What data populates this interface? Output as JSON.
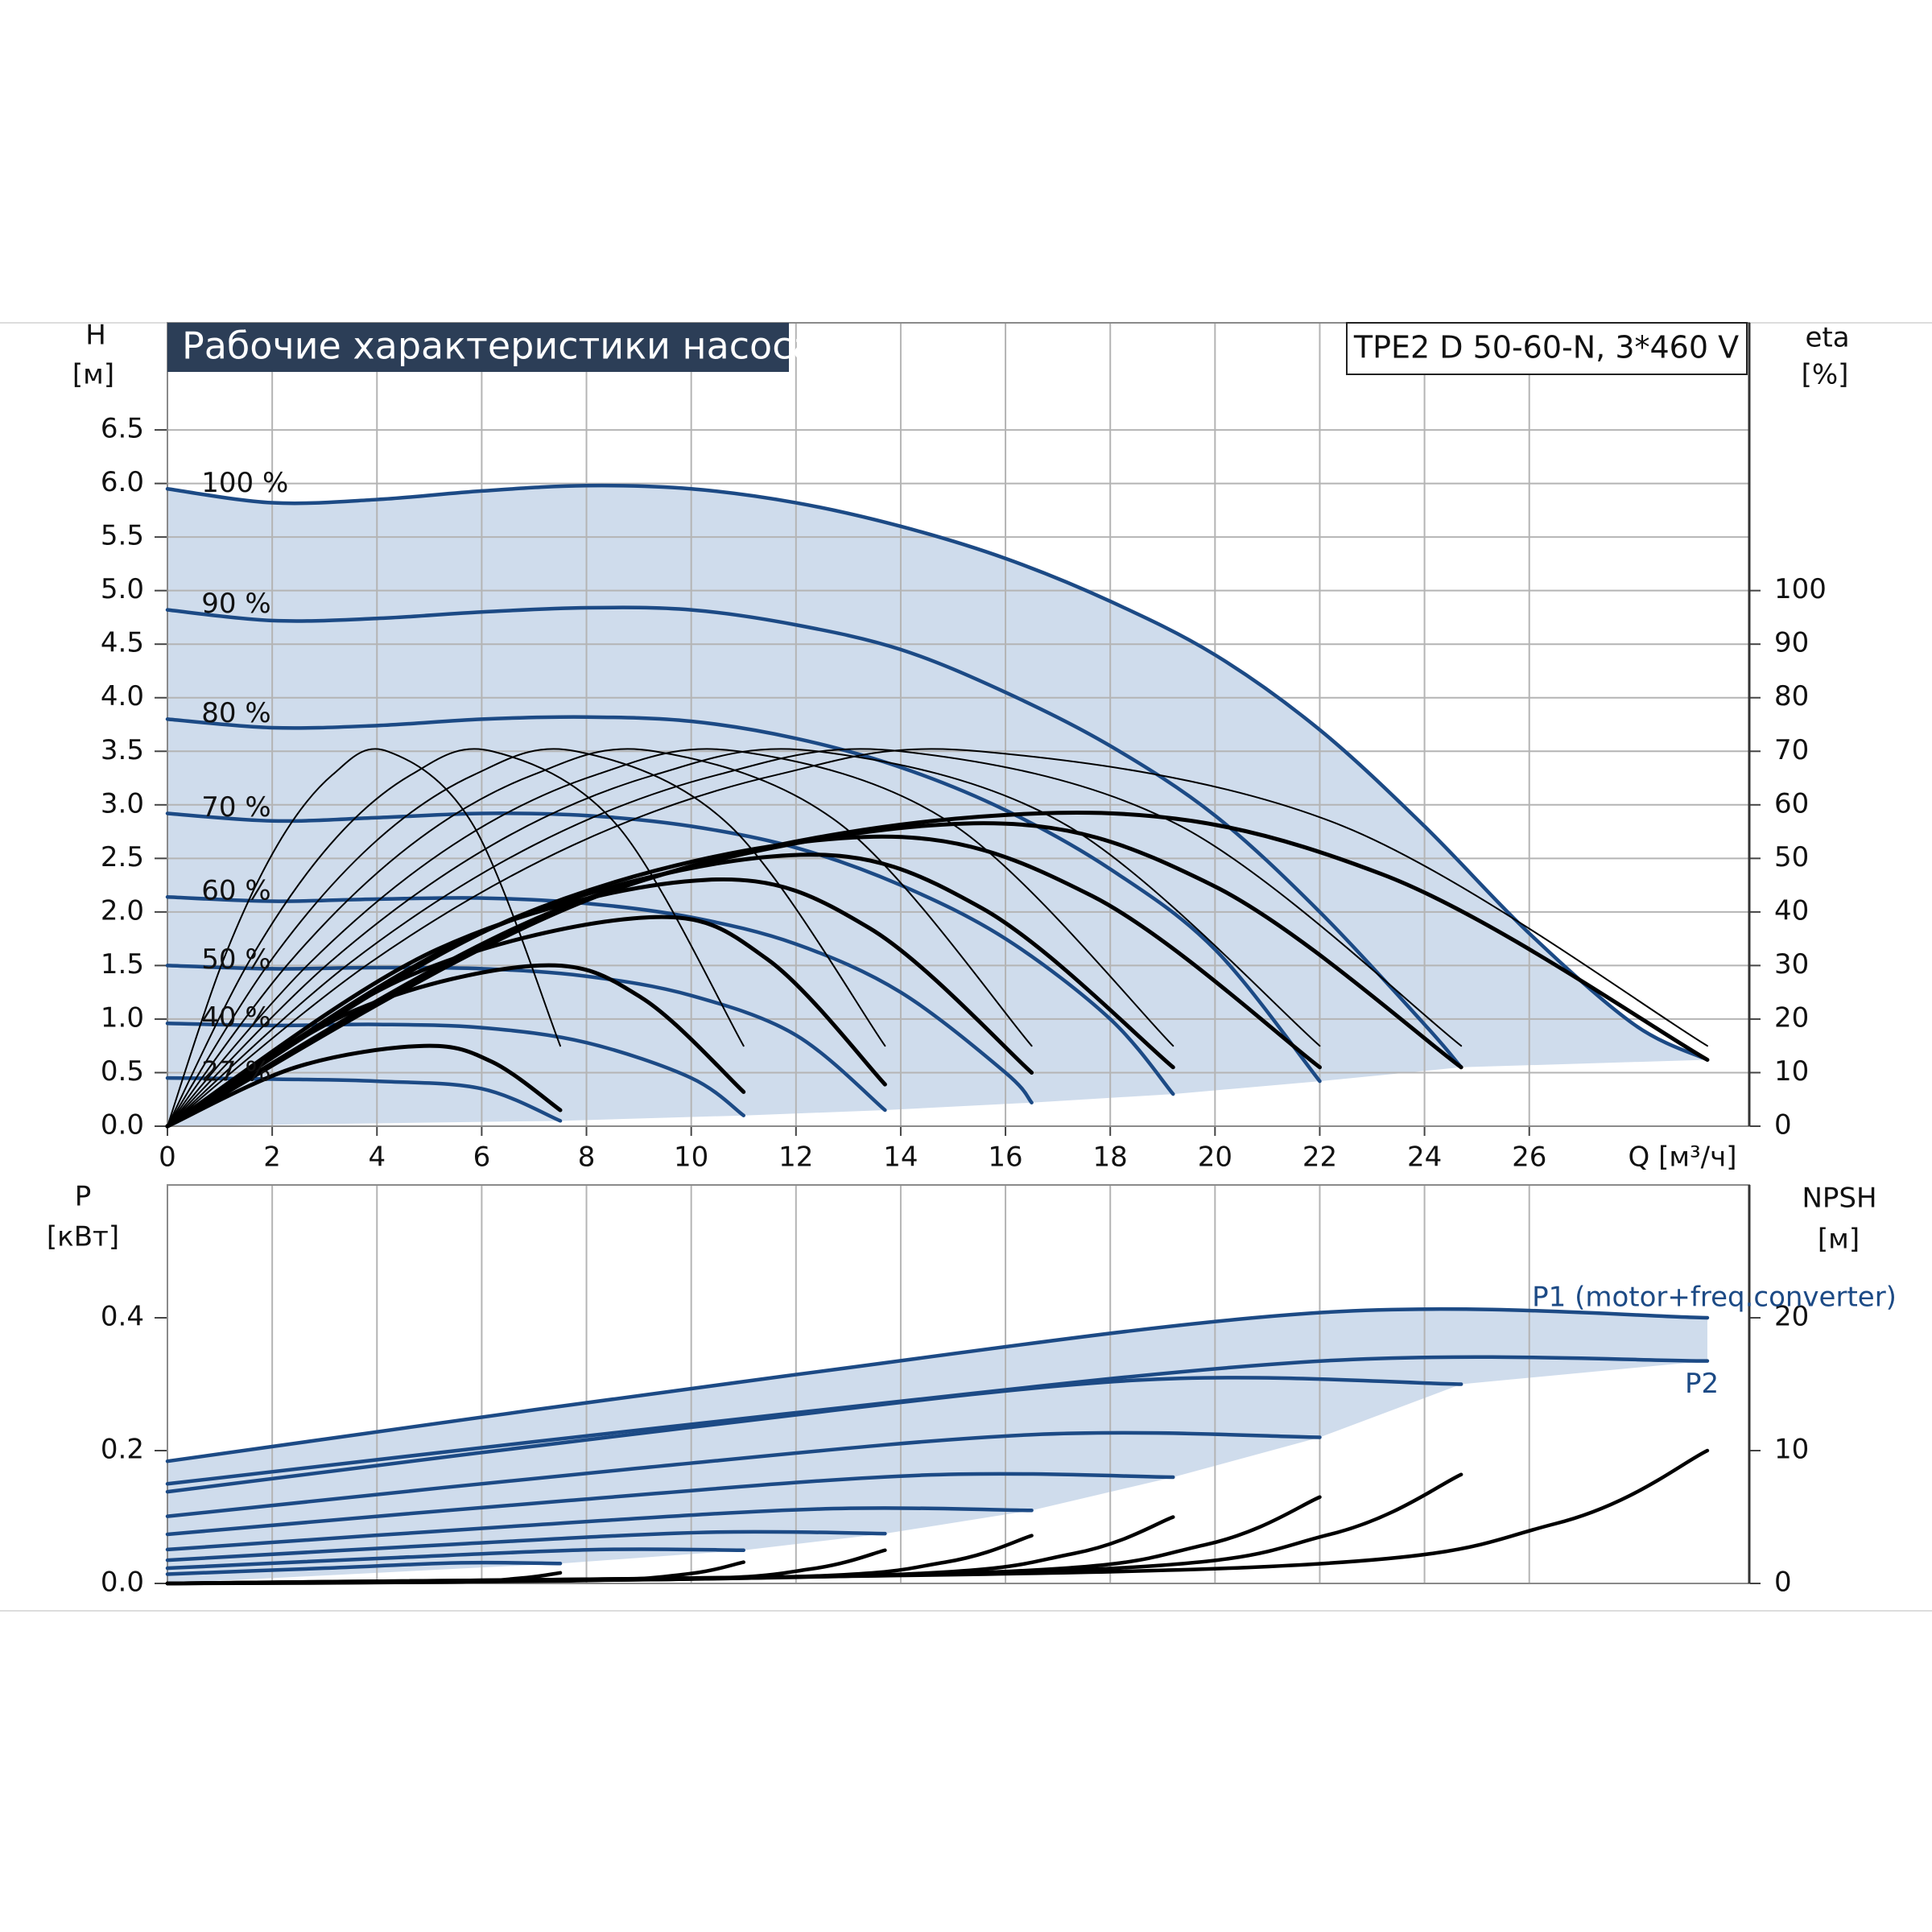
{
  "chart_data": [
    {
      "type": "line",
      "title": "Рабочие характеристики насоса",
      "subtitle": "TPE2 D 50-60-N, 3*460 V",
      "y_label": "H",
      "y_unit": "[м]",
      "y2_label": "eta",
      "y2_unit": "[%]",
      "x_label": "Q [м³/ч]",
      "xlim": [
        0,
        30.2
      ],
      "xticks": [
        0,
        2,
        4,
        6,
        8,
        10,
        12,
        14,
        16,
        18,
        20,
        22,
        24,
        26
      ],
      "ylim": [
        0,
        7.5
      ],
      "yticks": [
        {
          "value": 0,
          "label": "0.0"
        },
        0.5,
        {
          "value": 1,
          "label": "1.0"
        },
        1.5,
        {
          "value": 2,
          "label": "2.0"
        },
        2.5,
        {
          "value": 3,
          "label": "3.0"
        },
        3.5,
        {
          "value": 4,
          "label": "4.0"
        },
        4.5,
        {
          "value": 5,
          "label": "5.0"
        },
        5.5,
        {
          "value": 6,
          "label": "6.0"
        },
        6.5
      ],
      "y2lim": [
        0,
        150
      ],
      "y2ticks": [
        0,
        10,
        20,
        30,
        40,
        50,
        60,
        70,
        80,
        90,
        100
      ],
      "grid": "both",
      "fill": "#cfdcec",
      "series": [
        {
          "name": "100 %",
          "color": "#1c4a85",
          "x": [
            0,
            2,
            4,
            6,
            8,
            10,
            12,
            14,
            16,
            18,
            20,
            22,
            24,
            26,
            28,
            29.4
          ],
          "values": [
            5.95,
            5.82,
            5.85,
            5.93,
            5.98,
            5.95,
            5.82,
            5.6,
            5.3,
            4.9,
            4.4,
            3.7,
            2.8,
            1.8,
            0.95,
            0.62
          ]
        },
        {
          "name": "90 %",
          "color": "#1c4a85",
          "x": [
            0,
            2,
            4,
            6,
            8,
            10,
            12,
            14,
            16,
            18,
            20,
            22,
            24,
            24.7
          ],
          "values": [
            4.82,
            4.72,
            4.74,
            4.8,
            4.84,
            4.82,
            4.68,
            4.45,
            4.05,
            3.55,
            2.9,
            2.0,
            0.95,
            0.55
          ]
        },
        {
          "name": "80 %",
          "color": "#1c4a85",
          "x": [
            0,
            2,
            4,
            6,
            8,
            10,
            12,
            14,
            16,
            18,
            20,
            22
          ],
          "values": [
            3.8,
            3.72,
            3.74,
            3.8,
            3.82,
            3.78,
            3.62,
            3.35,
            2.95,
            2.4,
            1.65,
            0.42
          ]
        },
        {
          "name": "70 %",
          "color": "#1c4a85",
          "x": [
            0,
            2,
            4,
            6,
            8,
            10,
            12,
            14,
            16,
            18,
            19.2
          ],
          "values": [
            2.92,
            2.85,
            2.88,
            2.92,
            2.9,
            2.8,
            2.6,
            2.25,
            1.75,
            1.0,
            0.3
          ]
        },
        {
          "name": "60 %",
          "color": "#1c4a85",
          "x": [
            0,
            2,
            4,
            6,
            8,
            10,
            12,
            14,
            16,
            16.5
          ],
          "values": [
            2.14,
            2.1,
            2.12,
            2.13,
            2.08,
            1.95,
            1.7,
            1.25,
            0.5,
            0.22
          ]
        },
        {
          "name": "50 %",
          "color": "#1c4a85",
          "x": [
            0,
            2,
            4,
            6,
            8,
            10,
            12,
            13.7
          ],
          "values": [
            1.5,
            1.47,
            1.48,
            1.47,
            1.4,
            1.22,
            0.85,
            0.15
          ]
        },
        {
          "name": "40 %",
          "color": "#1c4a85",
          "x": [
            0,
            2,
            4,
            6,
            8,
            10,
            11
          ],
          "values": [
            0.96,
            0.94,
            0.95,
            0.92,
            0.78,
            0.45,
            0.1
          ]
        },
        {
          "name": "27 %",
          "color": "#1c4a85",
          "x": [
            0,
            2,
            4,
            6,
            7.5
          ],
          "values": [
            0.45,
            0.44,
            0.42,
            0.35,
            0.05
          ]
        },
        {
          "axis": "y2",
          "linestyle": "thin",
          "color": "#000000",
          "x": [
            0,
            3.88,
            7.75,
            11.63,
            15.5,
            22.45,
            29.4
          ],
          "values": [
            0,
            30.6,
            52.5,
            65.6,
            70,
            56,
            15
          ]
        },
        {
          "axis": "y2",
          "linestyle": "thin",
          "color": "#000000",
          "x": [
            0,
            3.5,
            7,
            10.5,
            14,
            19.35,
            24.7
          ],
          "values": [
            0,
            30.6,
            52.5,
            65.6,
            70,
            56,
            15
          ]
        },
        {
          "axis": "y2",
          "linestyle": "thin",
          "color": "#000000",
          "x": [
            0,
            3.1,
            6.2,
            9.3,
            12.4,
            17.2,
            22
          ],
          "values": [
            0,
            30.6,
            52.5,
            65.6,
            70,
            56,
            15
          ]
        },
        {
          "axis": "y2",
          "linestyle": "thin",
          "color": "#000000",
          "x": [
            0,
            2.73,
            5.45,
            8.18,
            10.9,
            15.05,
            19.2
          ],
          "values": [
            0,
            30.6,
            52.5,
            65.6,
            70,
            56,
            15
          ]
        },
        {
          "axis": "y2",
          "linestyle": "thin",
          "color": "#000000",
          "x": [
            0,
            2.33,
            4.65,
            6.98,
            9.3,
            12.9,
            16.5
          ],
          "values": [
            0,
            30.6,
            52.5,
            65.6,
            70,
            56,
            15
          ]
        },
        {
          "axis": "y2",
          "linestyle": "thin",
          "color": "#000000",
          "x": [
            0,
            1.95,
            3.9,
            5.85,
            7.8,
            10.75,
            13.7
          ],
          "values": [
            0,
            30.6,
            52.5,
            65.6,
            70,
            56,
            15
          ]
        },
        {
          "axis": "y2",
          "linestyle": "thin",
          "color": "#000000",
          "x": [
            0,
            1.55,
            3.1,
            4.65,
            6.2,
            8.6,
            11
          ],
          "values": [
            0,
            30.6,
            52.5,
            65.6,
            70,
            56,
            15
          ]
        },
        {
          "axis": "y2",
          "linestyle": "thin",
          "color": "#000000",
          "x": [
            0,
            1.05,
            2.1,
            3.15,
            4.2,
            5.85,
            7.5
          ],
          "values": [
            0,
            30.6,
            52.5,
            65.6,
            70,
            56,
            15
          ]
        },
        {
          "axis": "y2",
          "linestyle": "thick",
          "color": "#000000",
          "x": [
            0,
            8.5,
            17,
            23.2,
            29.4
          ],
          "values": [
            0,
            44,
            58.5,
            47,
            12.4
          ]
        },
        {
          "axis": "y2",
          "linestyle": "thick",
          "color": "#000000",
          "x": [
            0,
            7.6,
            15.2,
            19.95,
            24.7
          ],
          "values": [
            0,
            41,
            56.5,
            45,
            11
          ]
        },
        {
          "axis": "y2",
          "linestyle": "thick",
          "color": "#000000",
          "x": [
            0,
            6.65,
            13.3,
            17.65,
            22
          ],
          "values": [
            0,
            39,
            54,
            43,
            11
          ]
        },
        {
          "axis": "y2",
          "linestyle": "thick",
          "color": "#000000",
          "x": [
            0,
            5.95,
            11.9,
            15.55,
            19.2
          ],
          "values": [
            0,
            36,
            50.6,
            40.7,
            11
          ]
        },
        {
          "axis": "y2",
          "linestyle": "thick",
          "color": "#000000",
          "x": [
            0,
            5.15,
            10.3,
            13.4,
            16.5
          ],
          "values": [
            0,
            33,
            46,
            37,
            10
          ]
        },
        {
          "axis": "y2",
          "linestyle": "thick",
          "color": "#000000",
          "x": [
            0,
            4.6,
            9.2,
            11.45,
            13.7
          ],
          "values": [
            0,
            28,
            39,
            31.2,
            7.8
          ]
        },
        {
          "axis": "y2",
          "linestyle": "thick",
          "color": "#000000",
          "x": [
            0,
            3.55,
            7.1,
            9.05,
            11
          ],
          "values": [
            0,
            21.5,
            30,
            24,
            6.4
          ]
        },
        {
          "axis": "y2",
          "linestyle": "thick",
          "color": "#000000",
          "x": [
            0,
            2.45,
            4.9,
            6.2,
            7.5
          ],
          "values": [
            0,
            11,
            15,
            12,
            3
          ]
        }
      ]
    },
    {
      "type": "line",
      "y_label": "P",
      "y_unit": "[кВт]",
      "y2_label": "NPSH",
      "y2_unit": "[м]",
      "xlim": [
        0,
        30.2
      ],
      "ylim": [
        0,
        0.6
      ],
      "yticks": [
        {
          "value": 0,
          "label": "0.0"
        },
        0.2,
        0.4
      ],
      "y2lim": [
        0,
        30
      ],
      "y2ticks": [
        0,
        10,
        20
      ],
      "grid": "x",
      "fill": "#cfdcec",
      "series": [
        {
          "name": "P1 (motor+freq.converter)",
          "color": "#1c4a85",
          "x": [
            0,
            11.76,
            22.05,
            29.4
          ],
          "values": [
            0.184,
            0.312,
            0.408,
            0.4
          ]
        },
        {
          "name": "P2",
          "color": "#1c4a85",
          "x": [
            0,
            11.76,
            22.05,
            29.4
          ],
          "values": [
            0.15,
            0.255,
            0.335,
            0.335
          ]
        },
        {
          "color": "#1c4a85",
          "x": [
            0,
            9.88,
            18.5,
            24.7
          ],
          "values": [
            0.138,
            0.234,
            0.306,
            0.3
          ]
        },
        {
          "color": "#1c4a85",
          "x": [
            0,
            8.8,
            16.5,
            22
          ],
          "values": [
            0.101,
            0.172,
            0.224,
            0.22
          ]
        },
        {
          "color": "#1c4a85",
          "x": [
            0,
            7.68,
            14.4,
            19.2
          ],
          "values": [
            0.074,
            0.125,
            0.163,
            0.16
          ]
        },
        {
          "color": "#1c4a85",
          "x": [
            0,
            6.6,
            12.4,
            16.5
          ],
          "values": [
            0.051,
            0.086,
            0.112,
            0.11
          ]
        },
        {
          "color": "#1c4a85",
          "x": [
            0,
            5.48,
            10.3,
            13.7
          ],
          "values": [
            0.035,
            0.059,
            0.077,
            0.075
          ]
        },
        {
          "color": "#1c4a85",
          "x": [
            0,
            4.4,
            8.25,
            11
          ],
          "values": [
            0.023,
            0.039,
            0.051,
            0.05
          ]
        },
        {
          "color": "#1c4a85",
          "x": [
            0,
            3,
            5.6,
            7.5
          ],
          "values": [
            0.014,
            0.023,
            0.031,
            0.03
          ]
        },
        {
          "axis": "y2",
          "color": "#000000",
          "x": [
            0,
            20.6,
            26.5,
            29.4
          ],
          "values": [
            0,
            1.2,
            4.5,
            10
          ]
        },
        {
          "axis": "y2",
          "color": "#000000",
          "x": [
            0,
            17.3,
            22.2,
            24.7
          ],
          "values": [
            0,
            1.0,
            3.7,
            8.2
          ]
        },
        {
          "axis": "y2",
          "color": "#000000",
          "x": [
            0,
            15.4,
            19.8,
            22
          ],
          "values": [
            0,
            0.8,
            2.9,
            6.5
          ]
        },
        {
          "axis": "y2",
          "color": "#000000",
          "x": [
            0,
            13.4,
            17.3,
            19.2
          ],
          "values": [
            0,
            0.6,
            2.25,
            5
          ]
        },
        {
          "axis": "y2",
          "color": "#000000",
          "x": [
            0,
            11.55,
            14.85,
            16.5
          ],
          "values": [
            0,
            0.45,
            1.6,
            3.6
          ]
        },
        {
          "axis": "y2",
          "color": "#000000",
          "x": [
            0,
            9.6,
            12.3,
            13.7
          ],
          "values": [
            0,
            0.3,
            1.1,
            2.5
          ]
        },
        {
          "axis": "y2",
          "color": "#000000",
          "x": [
            0,
            7.7,
            9.9,
            11
          ],
          "values": [
            0,
            0.2,
            0.7,
            1.6
          ]
        },
        {
          "axis": "y2",
          "color": "#000000",
          "x": [
            0,
            5.25,
            6.75,
            7.5
          ],
          "values": [
            0,
            0.1,
            0.4,
            0.8
          ]
        }
      ]
    }
  ]
}
